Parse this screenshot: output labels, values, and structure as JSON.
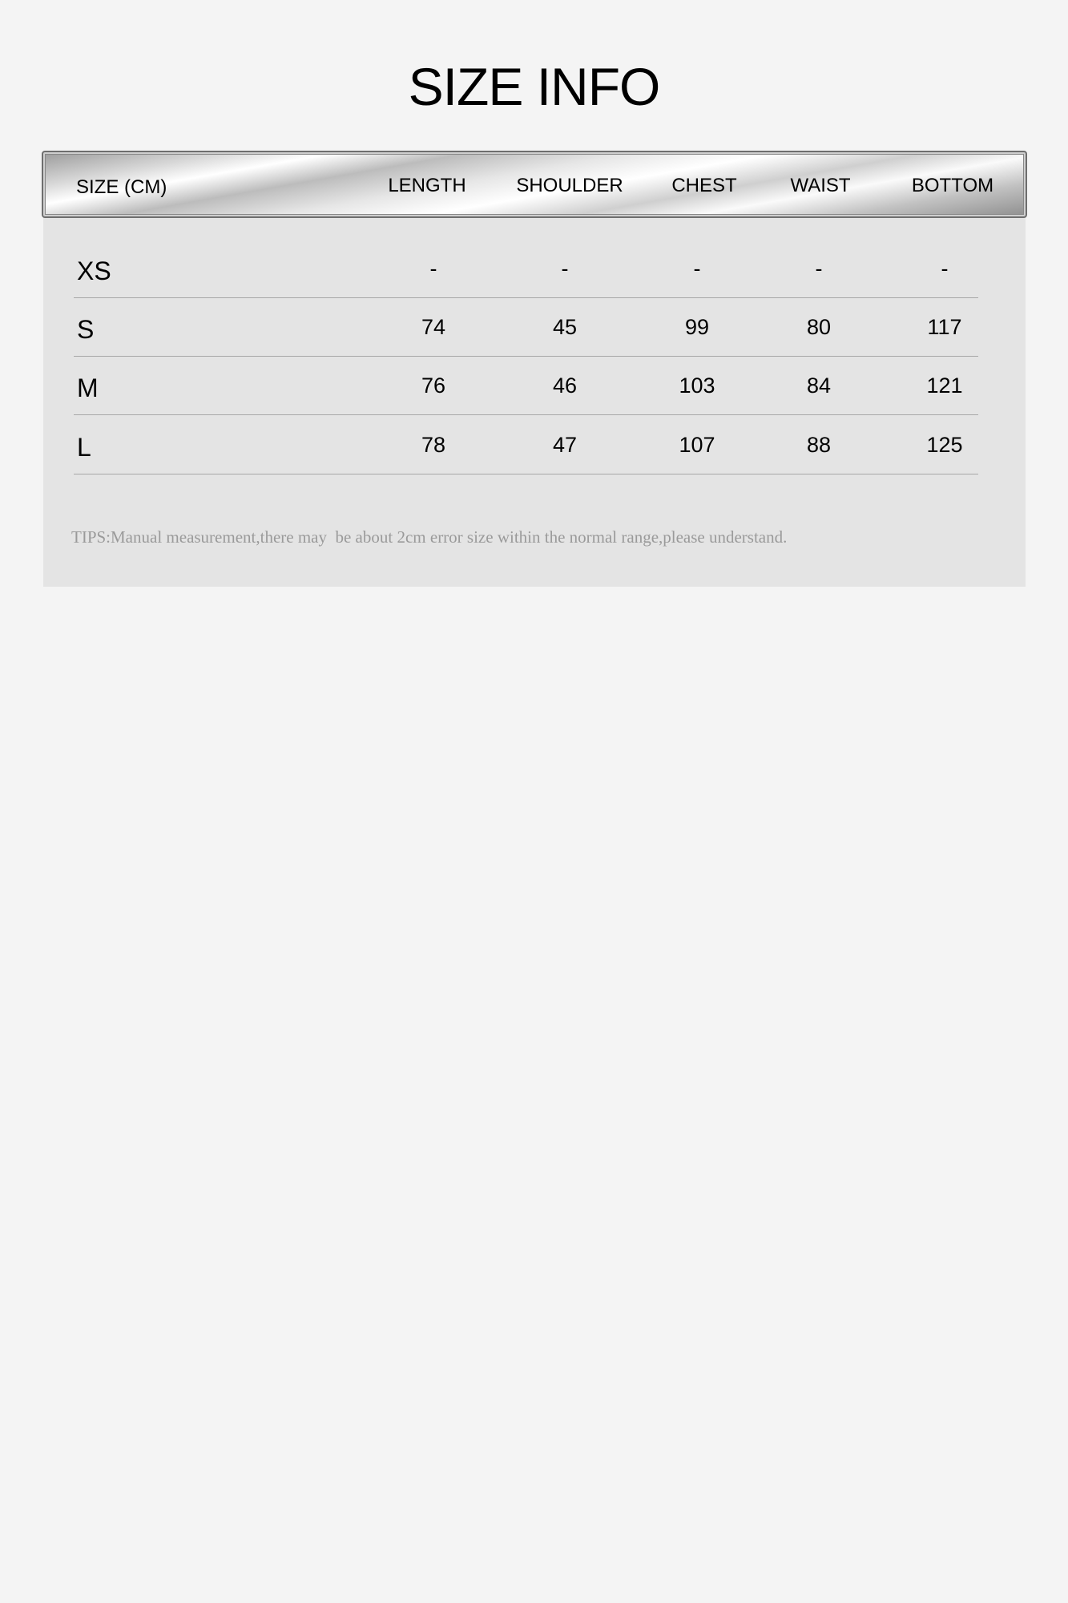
{
  "title": "SIZE INFO",
  "table": {
    "columns": [
      "SIZE (CM)",
      "LENGTH",
      "SHOULDER",
      "CHEST",
      "WAIST",
      "BOTTOM"
    ],
    "rows": [
      {
        "size": "XS",
        "values": [
          "-",
          "-",
          "-",
          "-",
          "-"
        ]
      },
      {
        "size": "S",
        "values": [
          "74",
          "45",
          "99",
          "80",
          "117"
        ]
      },
      {
        "size": "M",
        "values": [
          "76",
          "46",
          "103",
          "84",
          "121"
        ]
      },
      {
        "size": "L",
        "values": [
          "78",
          "47",
          "107",
          "88",
          "125"
        ]
      }
    ]
  },
  "tips": "TIPS:Manual measurement,there may  be about 2cm error size within the normal range,please understand."
}
